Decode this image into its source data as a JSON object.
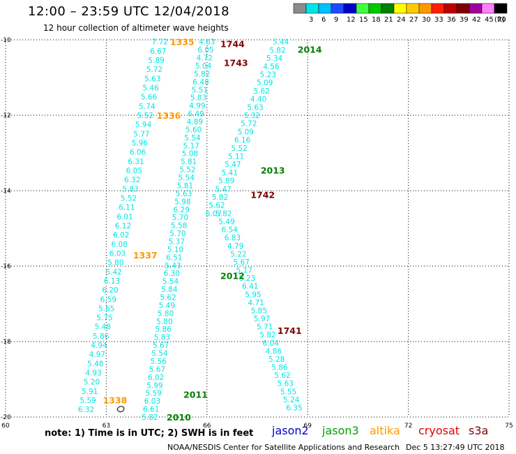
{
  "header": {
    "title": "12:00 – 23:59 UTC 12/04/2018",
    "subtitle": "12 hour collection of altimeter wave heights"
  },
  "colorbar": {
    "unit_label": "(ft)",
    "bins": [
      {
        "label": "",
        "color": "#8c8c8c"
      },
      {
        "label": "3",
        "color": "#00e5e5"
      },
      {
        "label": "6",
        "color": "#00c0ff"
      },
      {
        "label": "9",
        "color": "#1e4bff"
      },
      {
        "label": "12",
        "color": "#0000c8"
      },
      {
        "label": "15",
        "color": "#40ff40"
      },
      {
        "label": "18",
        "color": "#00c800"
      },
      {
        "label": "21",
        "color": "#008000"
      },
      {
        "label": "24",
        "color": "#ffff00"
      },
      {
        "label": "27",
        "color": "#ffcc00"
      },
      {
        "label": "30",
        "color": "#ff9900"
      },
      {
        "label": "33",
        "color": "#ff2000"
      },
      {
        "label": "36",
        "color": "#c00000"
      },
      {
        "label": "39",
        "color": "#800000"
      },
      {
        "label": "42",
        "color": "#a000a0"
      },
      {
        "label": "45",
        "color": "#ff80ff"
      },
      {
        "label": "70",
        "color": "#000000"
      }
    ]
  },
  "axes": {
    "lon_ticks": [
      "60",
      "63",
      "66",
      "69",
      "72",
      "75"
    ],
    "lat_ticks": [
      "-10",
      "-12",
      "-14",
      "-16",
      "-18",
      "-20"
    ]
  },
  "map_data": {
    "lon_range": [
      60,
      75
    ],
    "lat_range": [
      -20,
      -10
    ],
    "value_color": "#00e5e5",
    "tracks": [
      {
        "lon_top": 64.6,
        "lat_top": -10.05,
        "lon_bottom": 62.4,
        "lat_bottom": -19.8,
        "values": [
          "7.72",
          "6.67",
          "5.89",
          "5.72",
          "5.63",
          "5.46",
          "5.66",
          "5.74",
          "5.52",
          "5.94",
          "5.77",
          "5.96",
          "6.06",
          "6.31",
          "6.05",
          "6.32",
          "5.83",
          "5.52",
          "6.11",
          "6.01",
          "6.12",
          "6.02",
          "6.08",
          "6.03",
          "5.80",
          "5.42",
          "6.13",
          "6.20",
          "6.59",
          "5.65",
          "5.75",
          "5.48",
          "5.86",
          "4.94",
          "4.97",
          "5.48",
          "4.93",
          "5.20",
          "5.91",
          "5.59",
          "6.32"
        ]
      },
      {
        "lon_top": 66.0,
        "lat_top": -10.05,
        "lon_bottom": 64.3,
        "lat_bottom": -20.0,
        "values": [
          "4.63",
          "6.05",
          "4.72",
          "5.04",
          "5.82",
          "6.48",
          "5.51",
          "5.83",
          "4.99",
          "6.49",
          "4.89",
          "5.60",
          "5.54",
          "5.17",
          "5.08",
          "5.81",
          "5.52",
          "5.54",
          "5.81",
          "5.63",
          "5.98",
          "6.29",
          "5.70",
          "5.58",
          "5.70",
          "5.37",
          "5.10",
          "6.51",
          "5.43",
          "6.30",
          "5.54",
          "5.84",
          "5.62",
          "5.49",
          "5.80",
          "5.80",
          "5.86",
          "5.83",
          "5.67",
          "5.54",
          "5.56",
          "5.67",
          "6.02",
          "5.99",
          "5.59",
          "6.03",
          "6.61",
          "5.82"
        ]
      },
      {
        "lon_top": 68.2,
        "lat_top": -10.05,
        "lon_bottom": 66.2,
        "lat_bottom": -14.6,
        "values": [
          "5.44",
          "5.82",
          "5.34",
          "4.56",
          "5.23",
          "5.09",
          "5.62",
          "4.40",
          "5.63",
          "5.32",
          "5.72",
          "5.09",
          "6.16",
          "5.52",
          "5.11",
          "5.47",
          "5.41",
          "5.89",
          "5.47",
          "5.82",
          "5.62",
          "6.07"
        ]
      },
      {
        "lon_top": 66.5,
        "lat_top": -14.6,
        "lon_bottom": 68.6,
        "lat_bottom": -19.75,
        "values": [
          "5.82",
          "5.49",
          "6.54",
          "6.83",
          "4.79",
          "5.22",
          "5.67",
          "5.17",
          "5.23",
          "6.41",
          "5.95",
          "4.71",
          "5.85",
          "5.97",
          "5.71",
          "5.82",
          "6.04",
          "4.86",
          "5.28",
          "5.86",
          "5.62",
          "5.63",
          "5.55",
          "5.24",
          "6.35"
        ]
      }
    ],
    "labels": [
      {
        "text": "1335",
        "lon": 64.9,
        "lat": -10.05,
        "color": "#ff9900"
      },
      {
        "text": "1744",
        "lon": 66.4,
        "lat": -10.1,
        "color": "#800000"
      },
      {
        "text": "2014",
        "lon": 68.7,
        "lat": -10.25,
        "color": "#008000"
      },
      {
        "text": "1743",
        "lon": 66.5,
        "lat": -10.6,
        "color": "#800000"
      },
      {
        "text": "1336",
        "lon": 64.5,
        "lat": -12.0,
        "color": "#ff9900"
      },
      {
        "text": "2013",
        "lon": 67.6,
        "lat": -13.45,
        "color": "#008000"
      },
      {
        "text": "1742",
        "lon": 67.3,
        "lat": -14.1,
        "color": "#800000"
      },
      {
        "text": "1337",
        "lon": 63.8,
        "lat": -15.7,
        "color": "#ff9900"
      },
      {
        "text": "2012",
        "lon": 66.4,
        "lat": -16.25,
        "color": "#008000"
      },
      {
        "text": "1741",
        "lon": 68.1,
        "lat": -17.7,
        "color": "#800000"
      },
      {
        "text": "1338",
        "lon": 62.9,
        "lat": -19.55,
        "color": "#ff9900"
      },
      {
        "text": "2011",
        "lon": 65.3,
        "lat": -19.4,
        "color": "#008000"
      },
      {
        "text": "2010",
        "lon": 64.8,
        "lat": -20.0,
        "color": "#008000"
      }
    ]
  },
  "footer": {
    "note": "note:  1) Time is in UTC;  2) SWH is in feet",
    "satellites": [
      {
        "name": "jason2",
        "color": "#0000c8"
      },
      {
        "name": "jason3",
        "color": "#00a000"
      },
      {
        "name": "altika",
        "color": "#ff9900"
      },
      {
        "name": "cryosat",
        "color": "#e00000"
      },
      {
        "name": "s3a",
        "color": "#800000"
      }
    ],
    "credit": "NOAA/NESDIS Center for Satellite Applications and Research",
    "timestamp": "Dec  5 13:27:49 UTC 2018"
  }
}
